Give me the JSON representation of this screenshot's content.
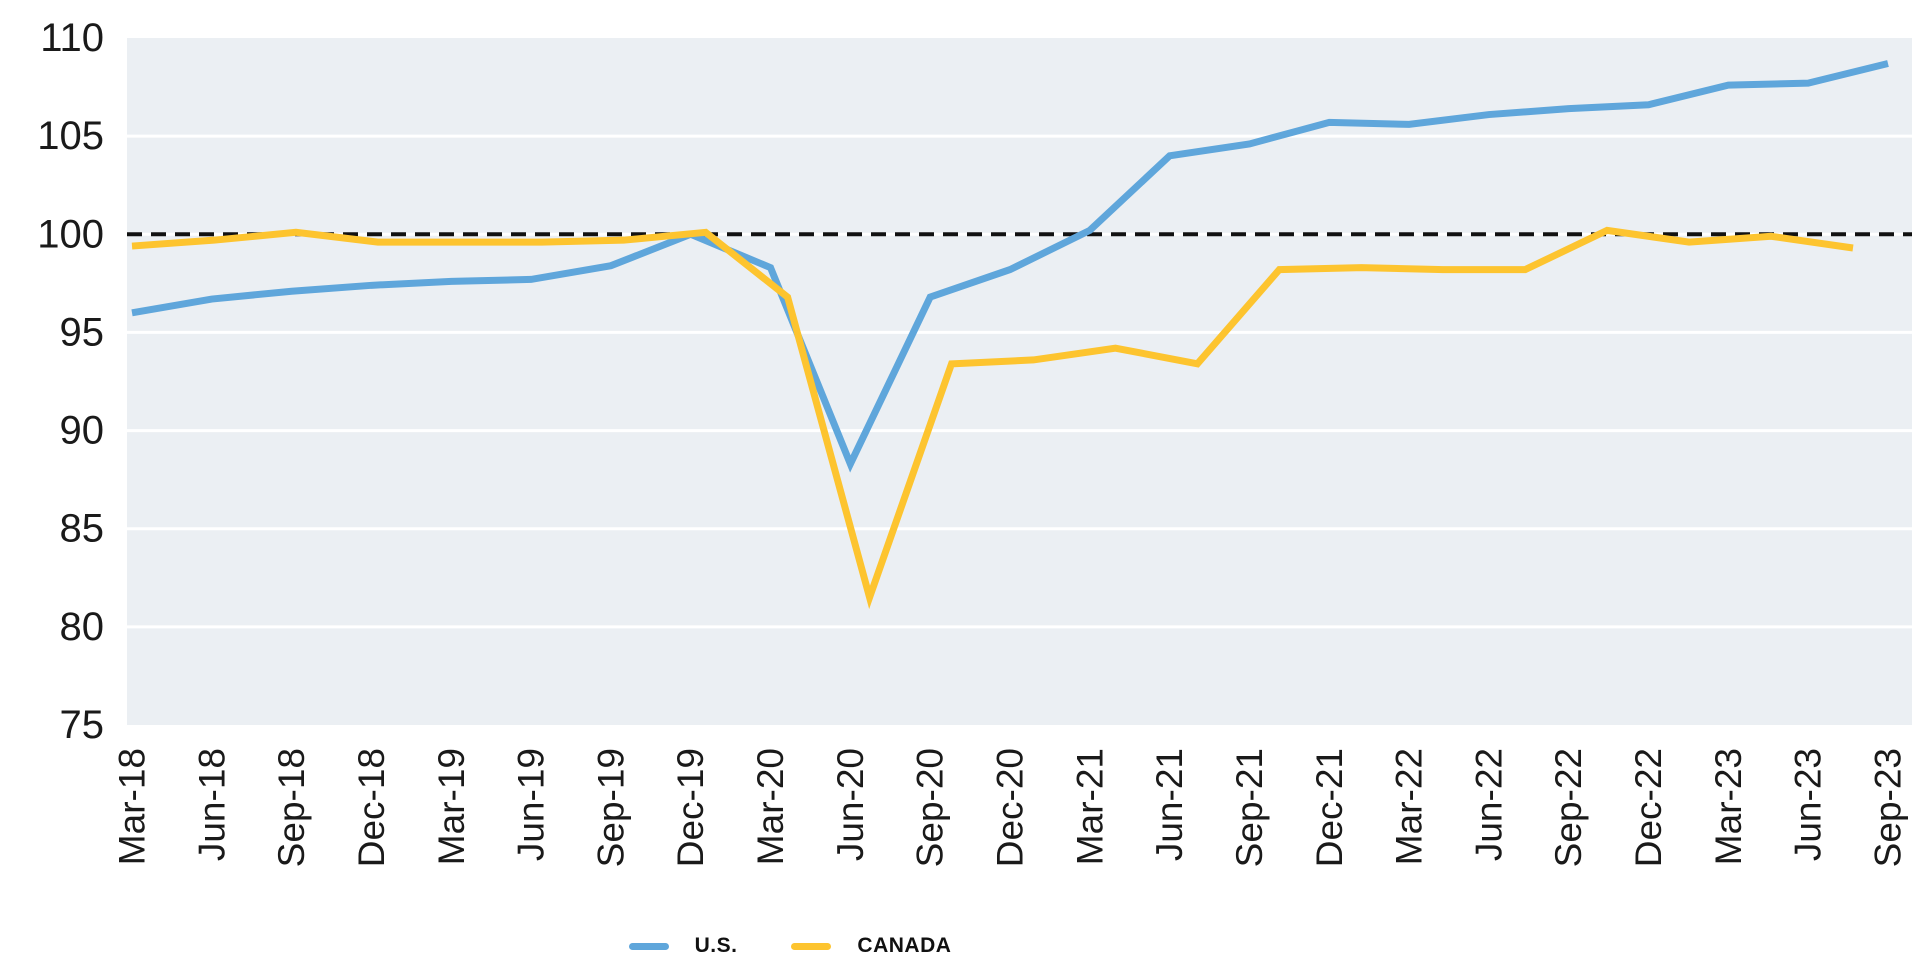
{
  "chart_data": {
    "type": "line",
    "title": "",
    "xlabel": "",
    "ylabel": "",
    "categories": [
      "Mar-18",
      "Jun-18",
      "Sep-18",
      "Dec-18",
      "Mar-19",
      "Jun-19",
      "Sep-19",
      "Dec-19",
      "Mar-20",
      "Jun-20",
      "Sep-20",
      "Dec-20",
      "Mar-21",
      "Jun-21",
      "Sep-21",
      "Dec-21",
      "Mar-22",
      "Jun-22",
      "Sep-22",
      "Dec-22",
      "Mar-23",
      "Jun-23",
      "Sep-23"
    ],
    "series": [
      {
        "name": "U.S.",
        "color": "#5FA6DB",
        "values": [
          96.0,
          96.7,
          97.1,
          97.4,
          97.6,
          97.7,
          98.4,
          100.0,
          98.3,
          88.3,
          96.8,
          98.2,
          100.2,
          104.0,
          104.6,
          105.7,
          105.6,
          106.1,
          106.4,
          106.6,
          107.6,
          107.7,
          108.7
        ]
      },
      {
        "name": "CANADA",
        "color": "#FDC42F",
        "values": [
          99.4,
          99.7,
          100.1,
          99.6,
          99.6,
          99.6,
          99.7,
          100.1,
          96.8,
          81.5,
          93.4,
          93.6,
          94.2,
          93.4,
          98.2,
          98.3,
          98.2,
          98.2,
          100.2,
          99.6,
          99.9,
          99.3
        ]
      }
    ],
    "reference_line": {
      "value": 100,
      "style": "dashed",
      "color": "#111111"
    },
    "ylim": [
      75,
      110
    ],
    "yticks": [
      75,
      80,
      85,
      90,
      95,
      100,
      105,
      110
    ],
    "grid": true,
    "gridline_color": "#ffffff",
    "plot_background": "#EBEFF3",
    "legend_position": "bottom",
    "tick_label_color": "#1a1a1a"
  },
  "legend": {
    "items": [
      {
        "label": "U.S."
      },
      {
        "label": "CANADA"
      }
    ]
  }
}
